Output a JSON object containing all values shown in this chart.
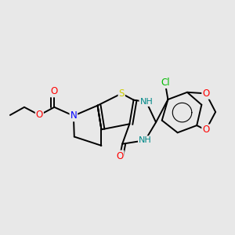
{
  "bg_color": "#e8e8e8",
  "atom_colors": {
    "S": "#cccc00",
    "N": "#0000ff",
    "O": "#ff0000",
    "Cl": "#00bb00",
    "C": "#000000",
    "NH": "#008888"
  },
  "figsize": [
    3.0,
    3.0
  ],
  "dpi": 100,
  "lw": 1.4
}
